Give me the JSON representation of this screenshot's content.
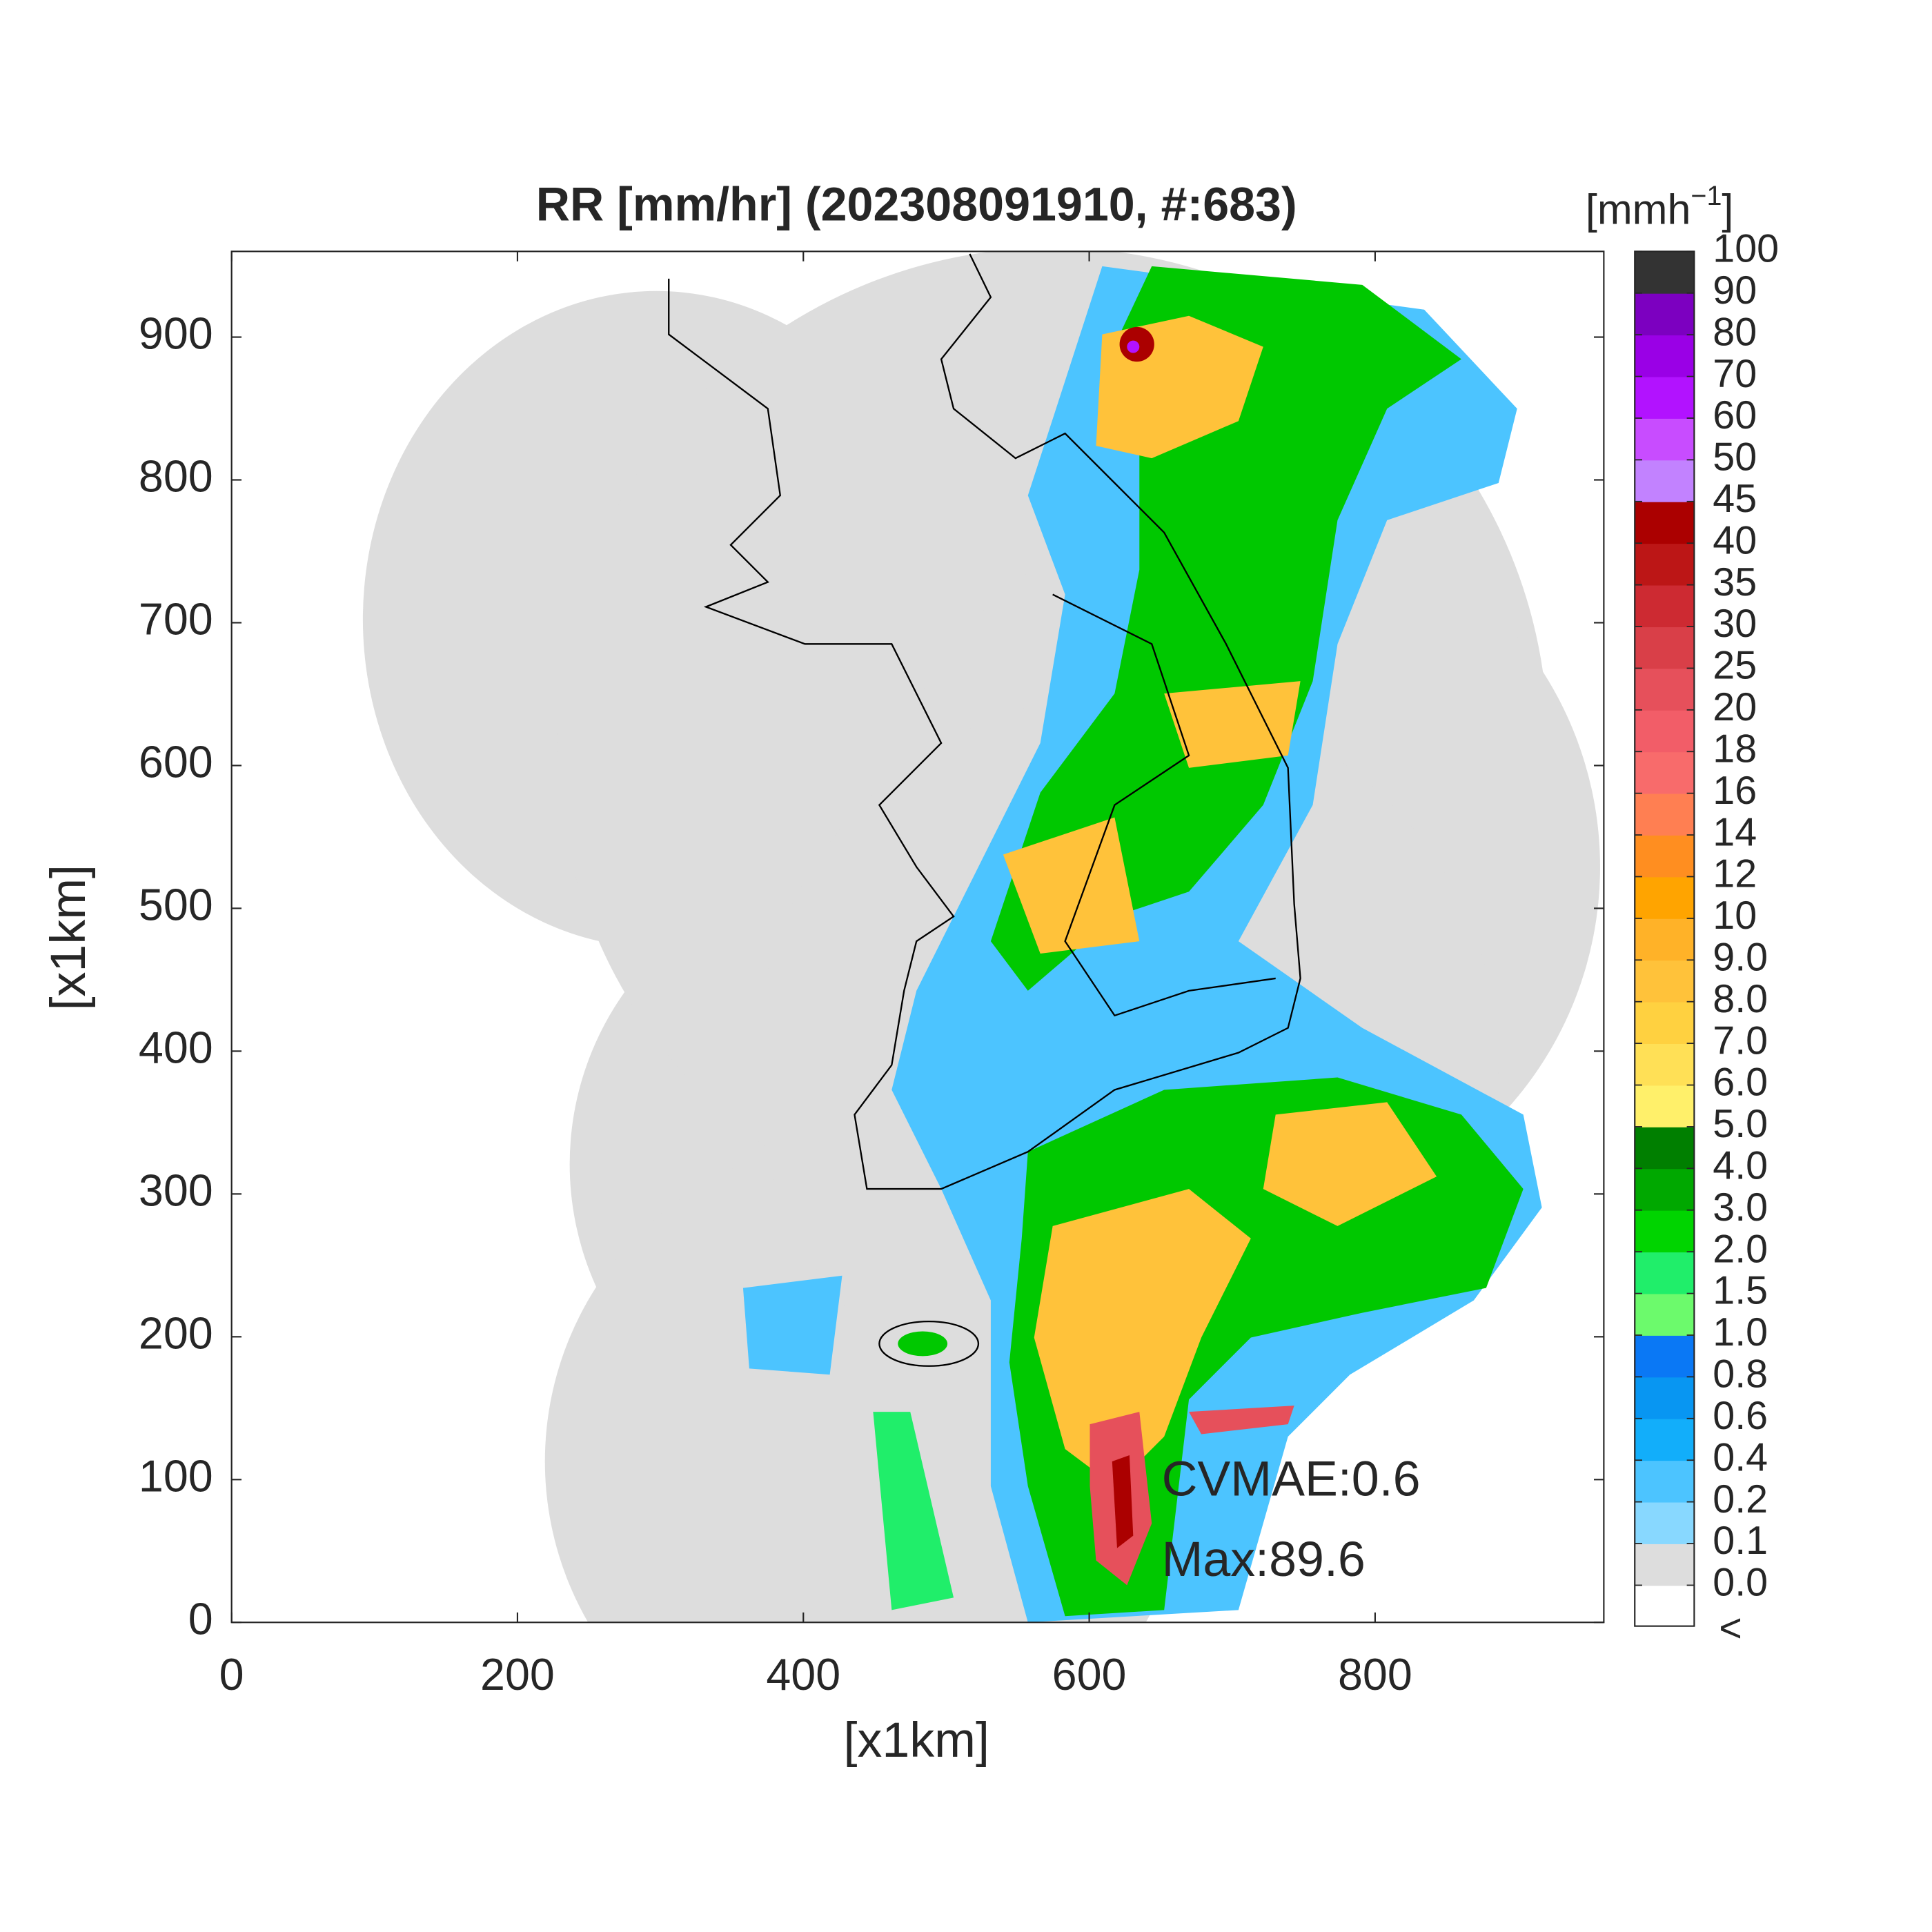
{
  "chart_data": {
    "type": "heatmap",
    "title": "RR [mm/hr] (202308091910, #:683)",
    "xlabel": "[x1km]",
    "ylabel": "[x1km]",
    "xlim": [
      0,
      960
    ],
    "ylim": [
      0,
      960
    ],
    "xticks": [
      0,
      200,
      400,
      600,
      800
    ],
    "yticks": [
      0,
      100,
      200,
      300,
      400,
      500,
      600,
      700,
      800,
      900
    ],
    "annotations": [
      "CVMAE:0.6",
      "Max:89.6"
    ],
    "colorbar": {
      "unit_base": "[mmh",
      "unit_exp": "−1",
      "unit_close": "]",
      "under_label": "<",
      "under_color": "#ffffff",
      "ticks": [
        {
          "value": 0,
          "label": "0.0"
        },
        0.1,
        0.2,
        0.4,
        0.6,
        0.8,
        {
          "value": 1,
          "label": "1.0"
        },
        1.5,
        {
          "value": 2,
          "label": "2.0"
        },
        {
          "value": 3,
          "label": "3.0"
        },
        {
          "value": 4,
          "label": "4.0"
        },
        {
          "value": 5,
          "label": "5.0"
        },
        {
          "value": 6,
          "label": "6.0"
        },
        {
          "value": 7,
          "label": "7.0"
        },
        {
          "value": 8,
          "label": "8.0"
        },
        {
          "value": 9,
          "label": "9.0"
        },
        10,
        12,
        14,
        16,
        18,
        20,
        25,
        30,
        35,
        40,
        45,
        50,
        60,
        70,
        80,
        90,
        100
      ],
      "colors": [
        "#dddddd",
        "#88d8ff",
        "#4cc4ff",
        "#12aefa",
        "#0896f2",
        "#0a78f5",
        "#6cfa6c",
        "#20ee6a",
        "#00d400",
        "#00a800",
        "#007f00",
        "#fff06a",
        "#ffe056",
        "#ffd140",
        "#ffc23a",
        "#ffb228",
        "#ffa400",
        "#ff8e20",
        "#ff7f52",
        "#f86b6b",
        "#f25d68",
        "#e6505b",
        "#d93f48",
        "#cd2a32",
        "#bc1616",
        "#ab0000",
        "#c282ff",
        "#c84cff",
        "#b212ff",
        "#9a00e6",
        "#7c00c0",
        "#333333"
      ]
    }
  }
}
